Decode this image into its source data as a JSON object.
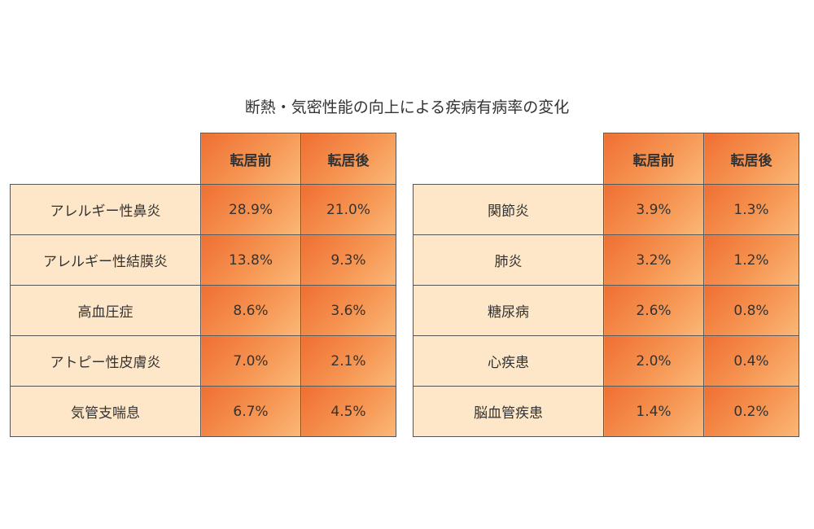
{
  "title": "断熱・気密性能の向上による疾病有病率の変化",
  "colors": {
    "header_gradient_dark": "#ef6f33",
    "header_gradient_light": "#fbb878",
    "label_bg": "#fde7c8",
    "border": "#555555"
  },
  "chart_data": [
    {
      "type": "table",
      "columns": [
        "転居前",
        "転居後"
      ],
      "rows": [
        {
          "label": "アレルギー性鼻炎",
          "values": [
            "28.9%",
            "21.0%"
          ]
        },
        {
          "label": "アレルギー性結膜炎",
          "values": [
            "13.8%",
            "9.3%"
          ]
        },
        {
          "label": "高血圧症",
          "values": [
            "8.6%",
            "3.6%"
          ]
        },
        {
          "label": "アトピー性皮膚炎",
          "values": [
            "7.0%",
            "2.1%"
          ]
        },
        {
          "label": "気管支喘息",
          "values": [
            "6.7%",
            "4.5%"
          ]
        }
      ]
    },
    {
      "type": "table",
      "columns": [
        "転居前",
        "転居後"
      ],
      "rows": [
        {
          "label": "関節炎",
          "values": [
            "3.9%",
            "1.3%"
          ]
        },
        {
          "label": "肺炎",
          "values": [
            "3.2%",
            "1.2%"
          ]
        },
        {
          "label": "糖尿病",
          "values": [
            "2.6%",
            "0.8%"
          ]
        },
        {
          "label": "心疾患",
          "values": [
            "2.0%",
            "0.4%"
          ]
        },
        {
          "label": "脳血管疾患",
          "values": [
            "1.4%",
            "0.2%"
          ]
        }
      ]
    }
  ]
}
